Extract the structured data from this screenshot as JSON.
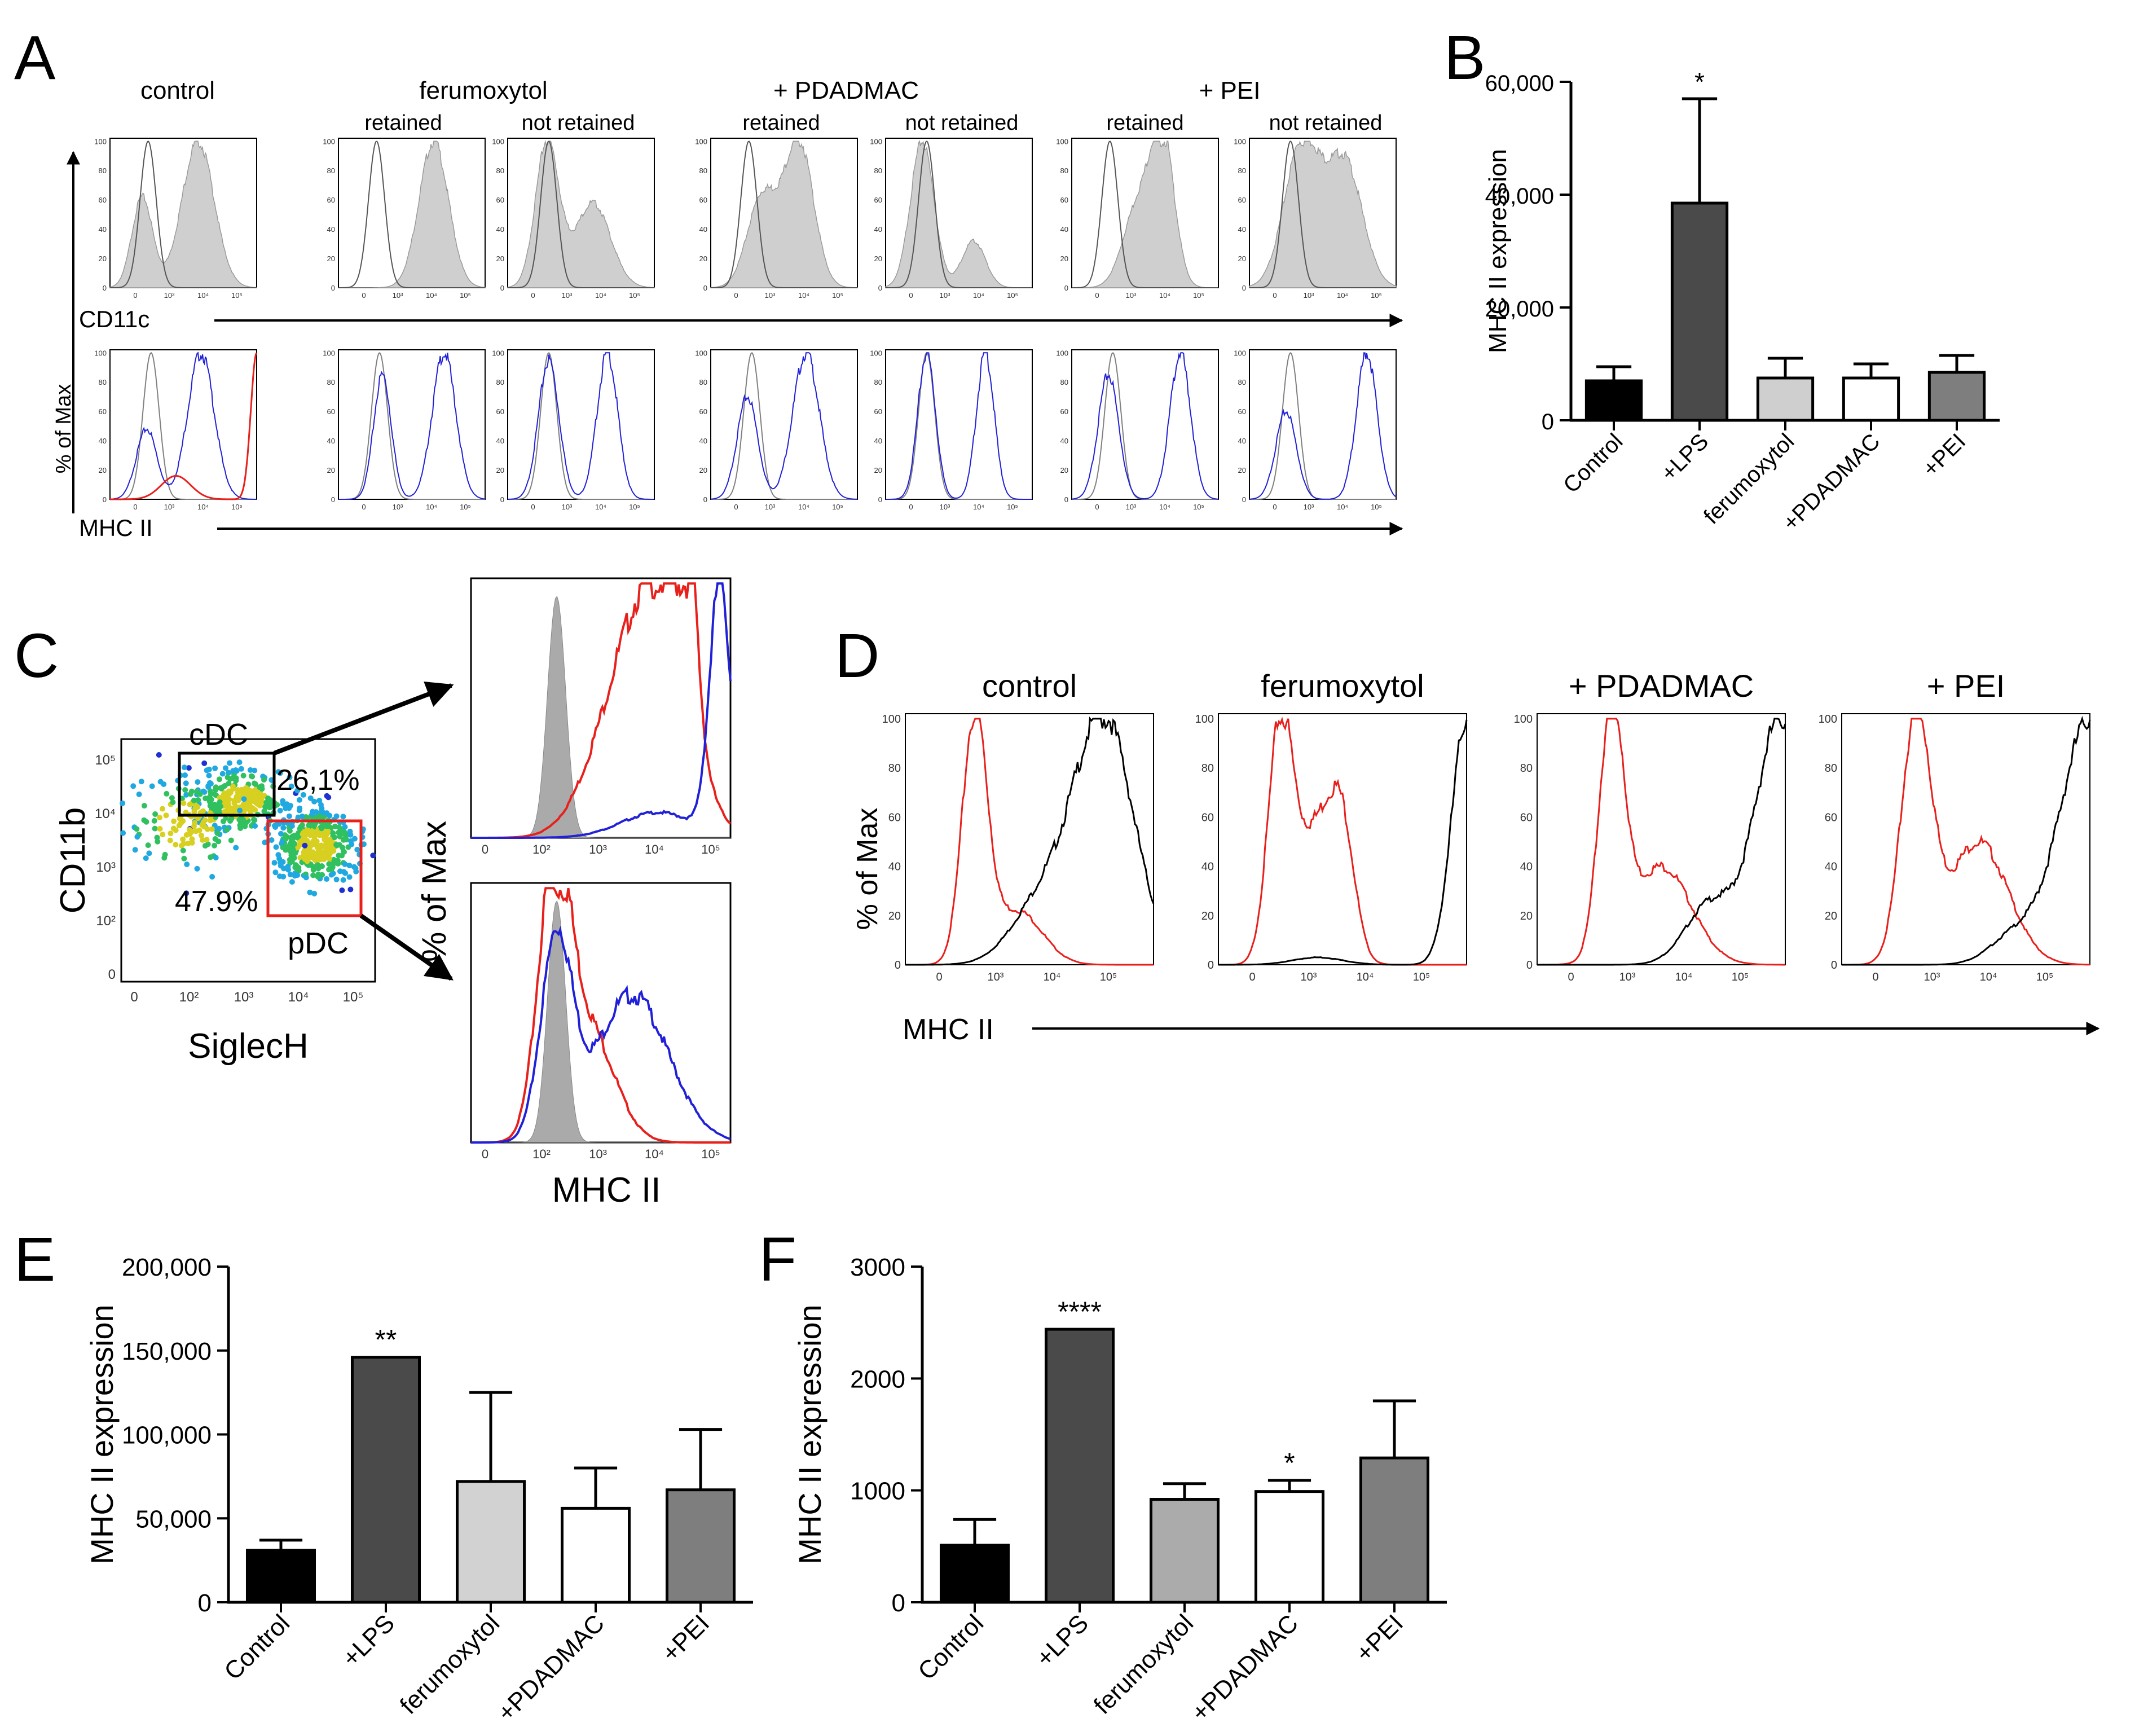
{
  "figure": {
    "panel_labels": [
      "A",
      "B",
      "C",
      "D",
      "E",
      "F"
    ],
    "colors": {
      "bar_control": "#000000",
      "bar_lps": "#4a4a4a",
      "bar_ferumoxytol_B": "#cfcfcf",
      "bar_ferumoxytol_E": "#d2d2d2",
      "bar_ferumoxytol_F": "#ababab",
      "bar_pdadmac": "#ffffff",
      "bar_pei": "#7e7e7e",
      "histogram_fill": "#cfcfcf",
      "red": "#e8201c",
      "blue": "#2020d8",
      "gray_line": "#808080"
    }
  },
  "panelA": {
    "group_titles": [
      "control",
      "ferumoxytol",
      "+ PDADMAC",
      "+ PEI"
    ],
    "sub_labels": [
      "retained",
      "not retained",
      "retained",
      "not retained",
      "retained",
      "not retained"
    ],
    "row_labels": [
      "CD11c",
      "MHC II"
    ],
    "y_label": "% of Max",
    "y_ticks": [
      "0",
      "20",
      "40",
      "60",
      "80",
      "100"
    ],
    "x_ticks": [
      "0",
      "10³",
      "10⁴",
      "10⁵"
    ]
  },
  "panelC": {
    "x_label": "SiglecH",
    "y_label": "CD11b",
    "gate_labels": [
      "cDC",
      "pDC"
    ],
    "percentages": [
      "26,1%",
      "47.9%"
    ],
    "dot_x_ticks": [
      "0",
      "10²",
      "10³",
      "10⁴",
      "10⁵"
    ],
    "dot_y_ticks": [
      "10⁵",
      "10⁴",
      "10³",
      "10²",
      "0"
    ],
    "hist_y_label": "% of Max",
    "hist_x_label": "MHC II",
    "hist_x_ticks": [
      "0",
      "10²",
      "10³",
      "10⁴",
      "10⁵"
    ]
  },
  "panelD": {
    "titles": [
      "control",
      "ferumoxytol",
      "+ PDADMAC",
      "+ PEI"
    ],
    "y_label": "% of Max",
    "x_label": "MHC II",
    "y_ticks": [
      "0",
      "20",
      "40",
      "60",
      "80",
      "100"
    ],
    "x_ticks": [
      "0",
      "10³",
      "10⁴",
      "10⁵"
    ]
  },
  "chart_data": [
    {
      "panel": "B",
      "type": "bar",
      "title": "",
      "categories": [
        "Control",
        "+LPS",
        "ferumoxytol",
        "+PDADMAC",
        "+PEI"
      ],
      "values": [
        7000,
        38500,
        7500,
        7500,
        8500
      ],
      "errors": [
        2500,
        18500,
        3500,
        2500,
        3000
      ],
      "significance": [
        "",
        "*",
        "",
        "",
        ""
      ],
      "ylabel": "MHC II expression",
      "xlabel": "",
      "ylim": [
        0,
        60000
      ],
      "yticks": [
        0,
        20000,
        40000,
        60000
      ],
      "ytick_labels": [
        "0",
        "20,000",
        "40,000",
        "60,000"
      ]
    },
    {
      "panel": "E",
      "type": "bar",
      "title": "",
      "categories": [
        "Control",
        "+LPS",
        "ferumoxytol",
        "+PDADMAC",
        "+PEI"
      ],
      "values": [
        31000,
        146000,
        72000,
        56000,
        67000
      ],
      "errors": [
        6000,
        0,
        53000,
        24000,
        36000
      ],
      "significance": [
        "",
        "**",
        "",
        "",
        ""
      ],
      "ylabel": "MHC II expression",
      "xlabel": "",
      "ylim": [
        0,
        200000
      ],
      "yticks": [
        0,
        50000,
        100000,
        150000,
        200000
      ],
      "ytick_labels": [
        "0",
        "50,000",
        "100,000",
        "150,000",
        "200,000"
      ]
    },
    {
      "panel": "F",
      "type": "bar",
      "title": "",
      "categories": [
        "Control",
        "+LPS",
        "ferumoxytol",
        "+PDADMAC",
        "+PEI"
      ],
      "values": [
        510,
        2440,
        920,
        990,
        1290
      ],
      "errors": [
        230,
        0,
        140,
        100,
        510
      ],
      "significance": [
        "",
        "****",
        "",
        "*",
        ""
      ],
      "ylabel": "MHC II expression",
      "xlabel": "",
      "ylim": [
        0,
        3000
      ],
      "yticks": [
        0,
        1000,
        2000,
        3000
      ],
      "ytick_labels": [
        "0",
        "1000",
        "2000",
        "3000"
      ]
    }
  ]
}
